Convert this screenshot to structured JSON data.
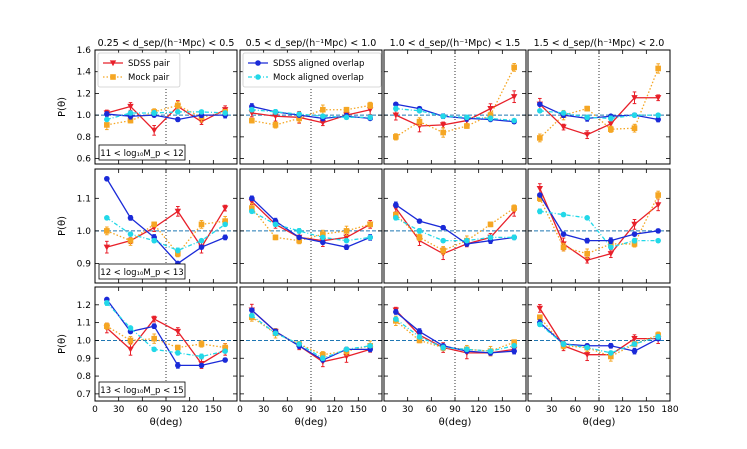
{
  "chart_data": {
    "type": "line",
    "column_titles": [
      "0.25 < d_sep/(h⁻¹Mpc) < 0.5",
      "0.5 < d_sep/(h⁻¹Mpc) < 1.0",
      "1.0 < d_sep/(h⁻¹Mpc) < 1.5",
      "1.5 < d_sep/(h⁻¹Mpc) < 2.0"
    ],
    "row_labels": [
      "11 < log₁₀M_p < 12",
      "12 < log₁₀M_p < 13",
      "13 < log₁₀M_p < 15"
    ],
    "xlabel": "θ(deg)",
    "ylabel": "P(θ)",
    "xlim": [
      0,
      180
    ],
    "xticks": [
      0,
      30,
      60,
      90,
      120,
      150,
      180
    ],
    "reference_line_y": 1.0,
    "vertical_line_x": 90,
    "rows": [
      {
        "ylim": [
          0.55,
          1.6
        ],
        "yticks": [
          0.6,
          0.8,
          1.0,
          1.2,
          1.4,
          1.6
        ]
      },
      {
        "ylim": [
          0.84,
          1.19
        ],
        "yticks": [
          0.9,
          1.0,
          1.1
        ]
      },
      {
        "ylim": [
          0.66,
          1.3
        ],
        "yticks": [
          0.7,
          0.8,
          0.9,
          1.0,
          1.1,
          1.2
        ]
      }
    ],
    "x": [
      15,
      45,
      75,
      105,
      135,
      165
    ],
    "legend": [
      {
        "name": "SDSS pair",
        "color": "#e8202a",
        "style": "solid",
        "marker": "triangle-down"
      },
      {
        "name": "Mock pair",
        "color": "#f5a623",
        "style": "dotted",
        "marker": "square"
      },
      {
        "name": "SDSS aligned overlap",
        "color": "#1a2ad8",
        "style": "solid",
        "marker": "circle"
      },
      {
        "name": "Mock aligned overlap",
        "color": "#22d8e8",
        "style": "dashdot",
        "marker": "circle"
      }
    ],
    "panels": [
      [
        {
          "sdss_pair": [
            1.02,
            1.08,
            0.86,
            1.08,
            0.94,
            1.05
          ],
          "mock_pair": [
            0.91,
            0.95,
            1.03,
            1.09,
            0.98,
            1.03
          ],
          "sdss_overlap": [
            1.01,
            0.99,
            1.0,
            0.96,
            1.0,
            1.0
          ],
          "mock_overlap": [
            0.96,
            1.02,
            1.02,
            1.03,
            1.03,
            1.02
          ]
        },
        {
          "sdss_pair": [
            1.02,
            0.99,
            0.98,
            0.93,
            1.0,
            1.05
          ],
          "mock_pair": [
            0.95,
            0.91,
            0.97,
            1.05,
            1.05,
            1.09
          ],
          "sdss_overlap": [
            1.08,
            1.03,
            1.0,
            0.97,
            0.99,
            0.97
          ],
          "mock_overlap": [
            1.05,
            1.03,
            1.01,
            0.99,
            0.98,
            0.98
          ]
        },
        {
          "sdss_pair": [
            1.0,
            0.9,
            0.91,
            0.95,
            1.06,
            1.17
          ],
          "mock_pair": [
            0.8,
            0.94,
            0.84,
            0.9,
            1.0,
            1.44
          ],
          "sdss_overlap": [
            1.1,
            1.06,
            0.99,
            0.97,
            0.96,
            0.94
          ],
          "mock_overlap": [
            1.06,
            1.04,
            0.99,
            0.98,
            0.97,
            0.95
          ]
        },
        {
          "sdss_pair": [
            1.1,
            0.89,
            0.82,
            0.92,
            1.16,
            1.16
          ],
          "mock_pair": [
            0.79,
            1.0,
            1.06,
            0.87,
            0.88,
            1.43
          ],
          "sdss_overlap": [
            1.1,
            1.0,
            0.97,
            0.99,
            1.0,
            0.96
          ],
          "mock_overlap": [
            1.04,
            1.02,
            0.98,
            0.97,
            1.0,
            1.0
          ]
        }
      ],
      [
        {
          "sdss_pair": [
            0.95,
            0.97,
            1.01,
            1.06,
            0.95,
            1.07
          ],
          "mock_pair": [
            1.0,
            0.97,
            1.02,
            0.93,
            1.02,
            1.03
          ],
          "sdss_overlap": [
            1.16,
            1.04,
            0.98,
            0.9,
            0.95,
            0.98
          ],
          "mock_overlap": [
            1.04,
            0.99,
            0.97,
            0.94,
            0.97,
            1.02
          ]
        },
        {
          "sdss_pair": [
            1.09,
            1.02,
            0.98,
            0.97,
            0.98,
            1.02
          ],
          "mock_pair": [
            1.07,
            0.98,
            0.97,
            0.99,
            1.0,
            1.02
          ],
          "sdss_overlap": [
            1.1,
            1.03,
            0.98,
            0.965,
            0.95,
            0.98
          ],
          "mock_overlap": [
            1.06,
            1.02,
            1.0,
            0.98,
            0.97,
            0.98
          ]
        },
        {
          "sdss_pair": [
            1.07,
            0.97,
            0.93,
            0.96,
            0.98,
            1.06
          ],
          "mock_pair": [
            1.05,
            0.98,
            0.94,
            0.97,
            1.02,
            1.07
          ],
          "sdss_overlap": [
            1.08,
            1.03,
            1.01,
            0.96,
            0.97,
            0.98
          ],
          "mock_overlap": [
            1.04,
            1.0,
            0.97,
            0.97,
            0.98,
            0.98
          ]
        },
        {
          "sdss_pair": [
            1.13,
            0.96,
            0.91,
            0.93,
            1.02,
            1.08
          ],
          "mock_pair": [
            1.1,
            0.95,
            0.93,
            0.96,
            0.96,
            1.11
          ],
          "sdss_overlap": [
            1.11,
            0.99,
            0.97,
            0.97,
            0.99,
            1.0
          ],
          "mock_overlap": [
            1.06,
            1.05,
            1.04,
            0.95,
            0.97,
            0.97
          ]
        }
      ],
      [
        {
          "sdss_pair": [
            1.07,
            0.95,
            1.12,
            1.05,
            0.87,
            0.95
          ],
          "mock_pair": [
            1.08,
            1.0,
            1.01,
            0.96,
            0.98,
            0.96
          ],
          "sdss_overlap": [
            1.23,
            1.05,
            1.08,
            0.86,
            0.86,
            0.89
          ],
          "mock_overlap": [
            1.21,
            1.07,
            0.95,
            0.93,
            0.91,
            0.94
          ]
        },
        {
          "sdss_pair": [
            1.17,
            1.05,
            0.97,
            0.88,
            0.91,
            0.95
          ],
          "mock_pair": [
            1.13,
            1.04,
            0.98,
            0.92,
            0.94,
            0.97
          ],
          "sdss_overlap": [
            1.17,
            1.05,
            0.97,
            0.89,
            0.95,
            0.95
          ],
          "mock_overlap": [
            1.14,
            1.04,
            0.98,
            0.9,
            0.95,
            0.97
          ]
        },
        {
          "sdss_pair": [
            1.17,
            1.03,
            0.96,
            0.93,
            0.93,
            0.95
          ],
          "mock_pair": [
            1.11,
            1.0,
            0.96,
            0.95,
            0.94,
            0.99
          ],
          "sdss_overlap": [
            1.16,
            1.05,
            0.97,
            0.94,
            0.93,
            0.94
          ],
          "mock_overlap": [
            1.12,
            1.02,
            0.96,
            0.95,
            0.94,
            0.97
          ]
        },
        {
          "sdss_pair": [
            1.18,
            0.97,
            0.92,
            0.92,
            1.01,
            1.01
          ],
          "mock_pair": [
            1.13,
            0.97,
            0.96,
            0.91,
            0.98,
            1.03
          ],
          "sdss_overlap": [
            1.1,
            0.98,
            0.97,
            0.97,
            0.94,
            1.01
          ],
          "mock_overlap": [
            1.09,
            0.98,
            0.96,
            0.93,
            0.98,
            1.02
          ]
        }
      ]
    ]
  }
}
